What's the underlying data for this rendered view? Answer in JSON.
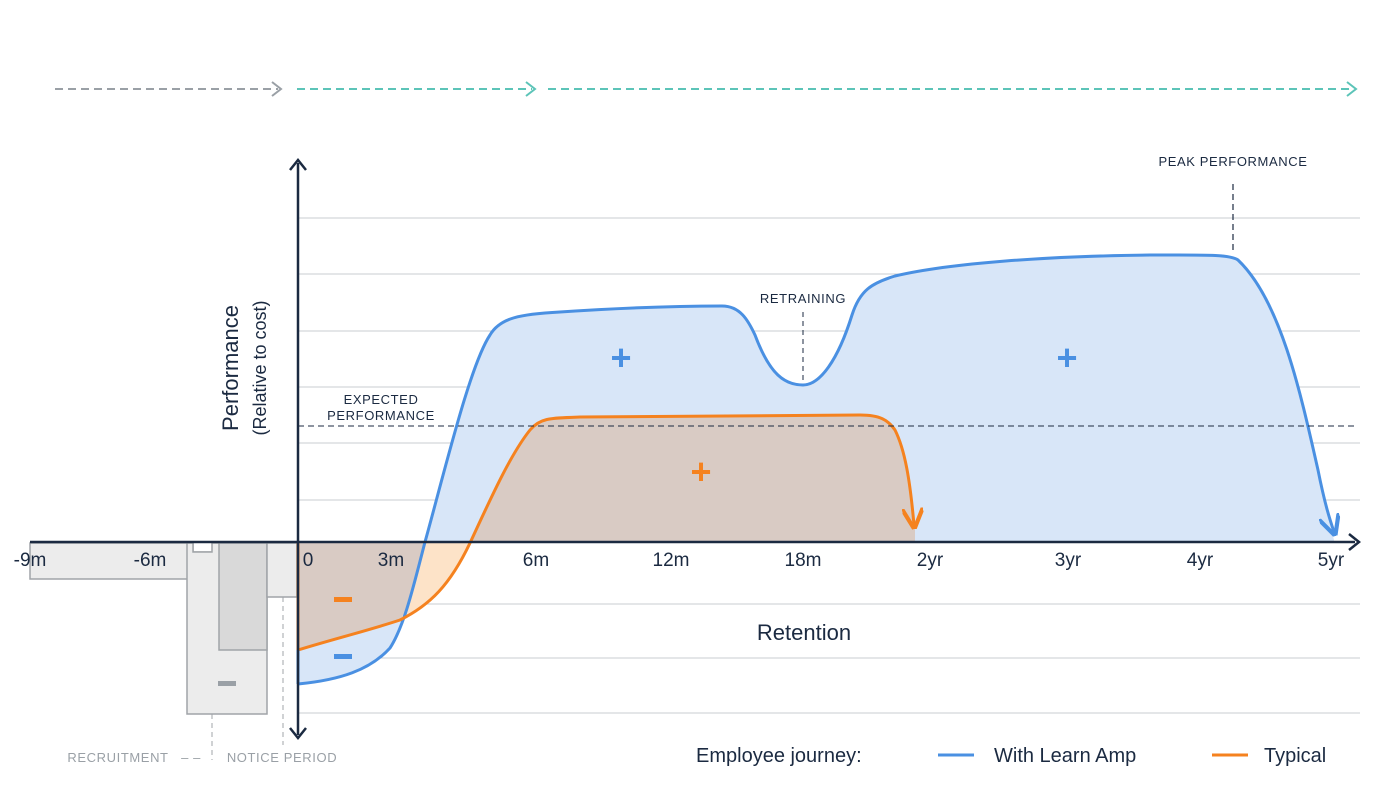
{
  "chart_data": {
    "type": "area",
    "title": "",
    "xlabel": "Retention",
    "ylabel": "Performance",
    "ylabel_sub": "(Relative to cost)",
    "x_tick_labels": [
      "-9m",
      "-6m",
      "0",
      "3m",
      "6m",
      "12m",
      "18m",
      "2yr",
      "3yr",
      "4yr",
      "5yr"
    ],
    "grid": true,
    "legend": {
      "placement": "bottom-right",
      "title": "Employee journey:",
      "entries": [
        {
          "name": "With Learn Amp",
          "color": "#4a90e2"
        },
        {
          "name": "Typical",
          "color": "#f5821f"
        }
      ]
    },
    "annotations": {
      "expected_line1": "EXPECTED",
      "expected_line2": "PERFORMANCE",
      "retraining": "RETRAINING",
      "peak": "PEAK PERFORMANCE",
      "recruitment": "RECRUITMENT",
      "notice": "NOTICE PERIOD",
      "dash_connector": "– –"
    },
    "region_signs": {
      "blue_plus": "+",
      "orange_plus": "+",
      "orange_minus": "-",
      "blue_minus": "-",
      "gray_minus": "-"
    },
    "colors": {
      "blue": "#4a90e2",
      "blue_fill": "#d8e6f8",
      "orange": "#f5821f",
      "orange_fill": "#d9c6bb",
      "axis": "#1b2a41",
      "grid": "#c8ccd1",
      "gray_arrow": "#9aa0a6",
      "teal_arrow": "#5cc4b8"
    }
  }
}
